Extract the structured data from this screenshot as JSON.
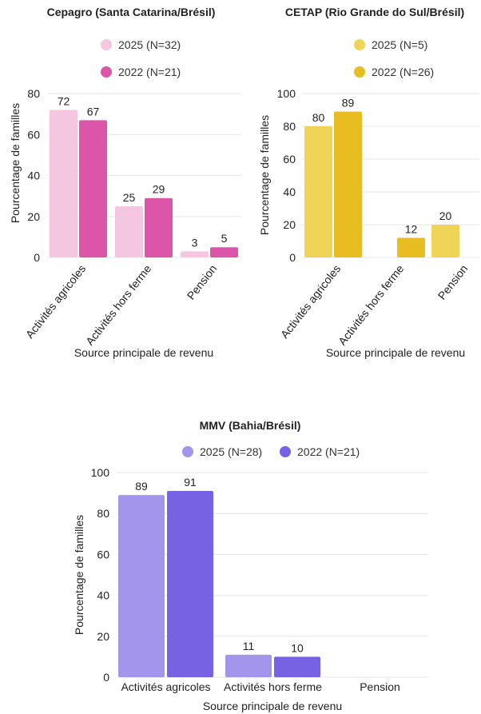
{
  "chart_data": [
    {
      "type": "bar",
      "title": "Cepagro (Santa Catarina/Brésil)",
      "xlabel": "Source principale de revenu",
      "ylabel": "Pourcentage de familles",
      "ylim": [
        0,
        80
      ],
      "yticks": [
        "0",
        "20",
        "40",
        "60",
        "80"
      ],
      "categories": [
        "Activités agricoles",
        "Activités hors ferme",
        "Pension"
      ],
      "series": [
        {
          "name": "2025 (N=32)",
          "color": "#f4c6e0",
          "values": [
            72,
            25,
            3
          ]
        },
        {
          "name": "2022 (N=21)",
          "color": "#dc55a8",
          "values": [
            67,
            29,
            5
          ]
        }
      ]
    },
    {
      "type": "bar",
      "title": "CETAP (Rio Grande do Sul/Brésil)",
      "xlabel": "Source principale de revenu",
      "ylabel": "Pourcentage de familles",
      "ylim": [
        0,
        100
      ],
      "yticks": [
        "0",
        "20",
        "40",
        "60",
        "80",
        "100"
      ],
      "categories": [
        "Activités agricoles",
        "Activités hors ferme",
        "Pension"
      ],
      "series": [
        {
          "name": "2025 (N=5)",
          "color": "#f0d458",
          "values": [
            80,
            null,
            20
          ]
        },
        {
          "name": "2022 (N=26)",
          "color": "#e8bd22",
          "values": [
            89,
            12,
            null
          ]
        }
      ]
    },
    {
      "type": "bar",
      "title": "MMV (Bahia/Brésil)",
      "xlabel": "Source principale de revenu",
      "ylabel": "Pourcentage de familles",
      "ylim": [
        0,
        100
      ],
      "yticks": [
        "0",
        "20",
        "40",
        "60",
        "80",
        "100"
      ],
      "categories": [
        "Activités agricoles",
        "Activités hors ferme",
        "Pension"
      ],
      "series": [
        {
          "name": "2025 (N=28)",
          "color": "#a495ec",
          "values": [
            89,
            11,
            null
          ]
        },
        {
          "name": "2022 (N=21)",
          "color": "#7762e3",
          "values": [
            91,
            10,
            null
          ]
        }
      ]
    }
  ]
}
